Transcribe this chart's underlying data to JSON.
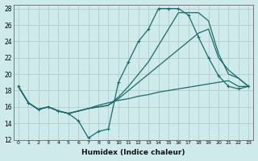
{
  "bg_color": "#ceeaea",
  "grid_color": "#b0cccc",
  "line_color": "#1a6b6b",
  "xlabel": "Humidex (Indice chaleur)",
  "xlim": [
    -0.5,
    23.5
  ],
  "ylim": [
    12,
    28.5
  ],
  "xticks": [
    0,
    1,
    2,
    3,
    4,
    5,
    6,
    7,
    8,
    9,
    10,
    11,
    12,
    13,
    14,
    15,
    16,
    17,
    18,
    19,
    20,
    21,
    22,
    23
  ],
  "yticks": [
    12,
    14,
    16,
    18,
    20,
    22,
    24,
    26,
    28
  ],
  "line_main_x": [
    0,
    1,
    2,
    3,
    4,
    5,
    6,
    7,
    8,
    9,
    10,
    11,
    12,
    13,
    14,
    15,
    16,
    17,
    18,
    19,
    20,
    21,
    22,
    23
  ],
  "line_main_y": [
    18.5,
    16.5,
    15.7,
    16.0,
    15.5,
    15.2,
    14.3,
    12.2,
    13.0,
    13.3,
    19.0,
    21.5,
    24.0,
    25.5,
    28.0,
    28.0,
    28.0,
    27.2,
    24.5,
    22.0,
    19.8,
    18.5,
    18.2,
    18.5
  ],
  "line_upper_x": [
    0,
    1,
    2,
    3,
    4,
    5,
    6,
    7,
    8,
    9,
    10,
    11,
    12,
    13,
    14,
    15,
    16,
    17,
    18,
    19,
    20,
    21,
    22,
    23
  ],
  "line_upper_y": [
    18.5,
    16.5,
    15.7,
    16.0,
    15.5,
    15.2,
    15.5,
    15.8,
    16.0,
    16.2,
    17.2,
    18.5,
    20.0,
    21.5,
    23.5,
    25.5,
    27.5,
    27.5,
    27.5,
    26.5,
    22.5,
    20.0,
    19.5,
    18.5
  ],
  "line_mid_x": [
    0,
    1,
    2,
    3,
    4,
    5,
    6,
    7,
    8,
    9,
    10,
    11,
    12,
    13,
    14,
    15,
    16,
    17,
    18,
    19,
    20,
    21,
    22,
    23
  ],
  "line_mid_y": [
    18.5,
    16.5,
    15.7,
    16.0,
    15.5,
    15.2,
    15.5,
    15.8,
    16.0,
    16.2,
    17.0,
    18.0,
    19.0,
    20.0,
    21.0,
    22.0,
    23.0,
    24.0,
    25.0,
    25.5,
    22.0,
    20.5,
    19.5,
    18.5
  ],
  "line_low_x": [
    0,
    1,
    2,
    3,
    4,
    5,
    6,
    7,
    8,
    9,
    10,
    11,
    12,
    13,
    14,
    15,
    16,
    17,
    18,
    19,
    20,
    21,
    22,
    23
  ],
  "line_low_y": [
    18.5,
    16.5,
    15.7,
    16.0,
    15.5,
    15.2,
    15.5,
    15.8,
    16.2,
    16.5,
    16.8,
    17.0,
    17.3,
    17.5,
    17.8,
    18.0,
    18.2,
    18.4,
    18.6,
    18.8,
    19.0,
    19.2,
    18.5,
    18.5
  ]
}
